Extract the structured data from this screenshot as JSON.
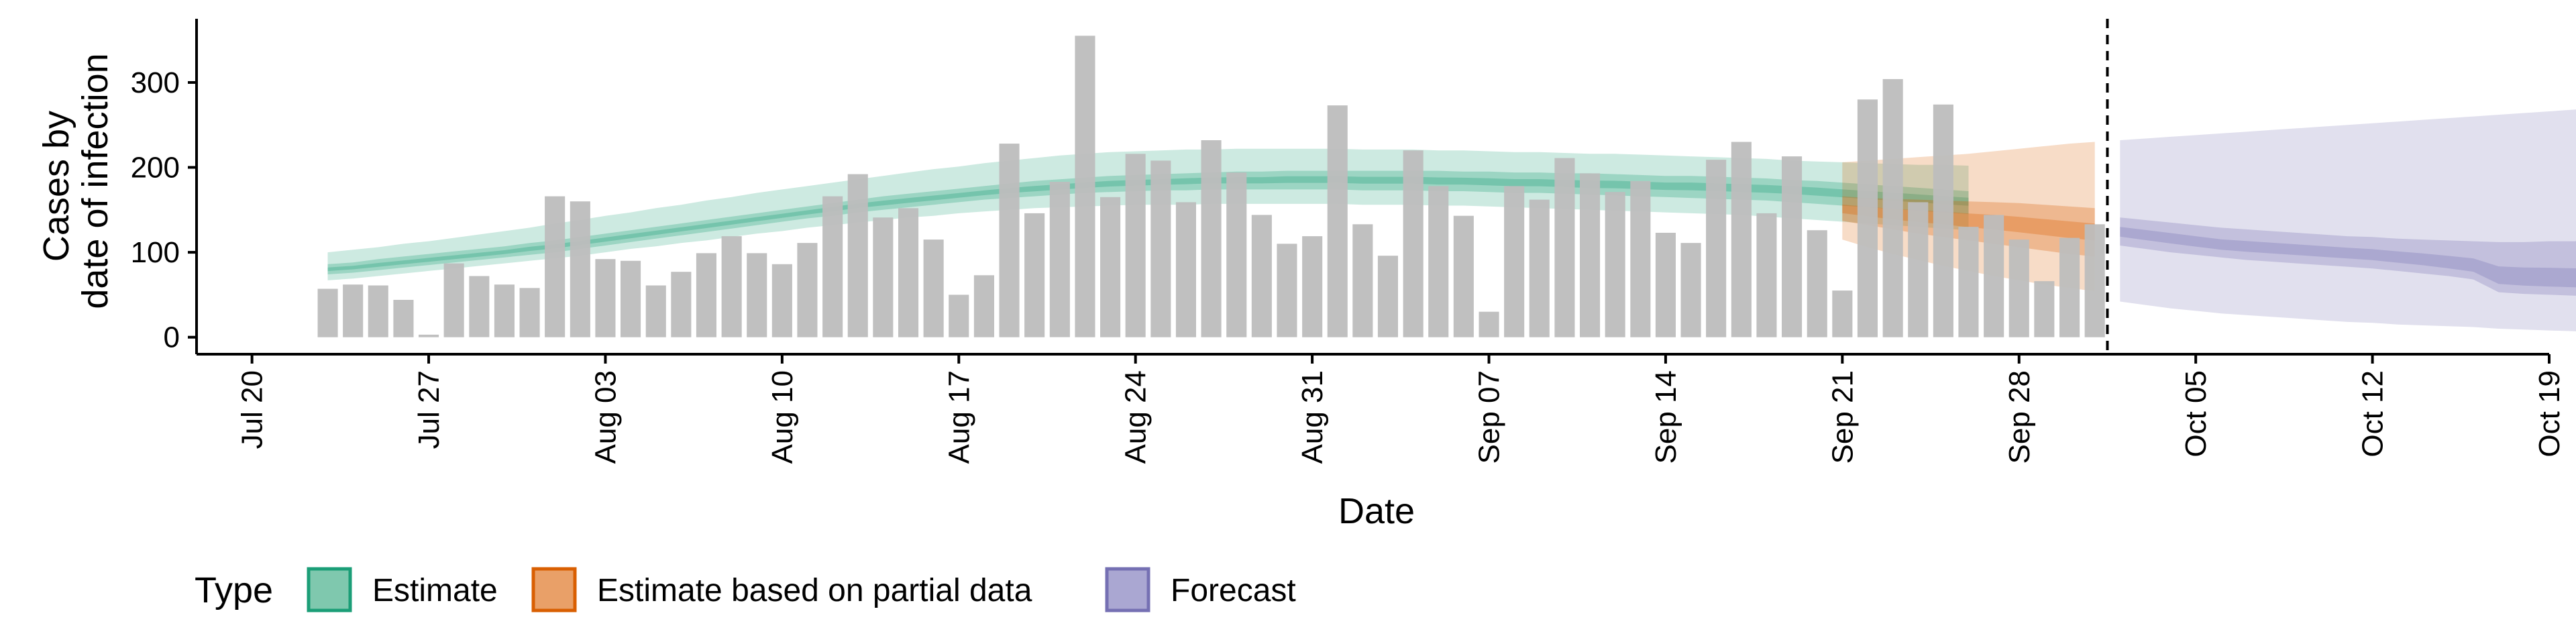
{
  "chart_data": {
    "type": "bar",
    "xlabel": "Date",
    "ylabel": [
      "Cases by",
      "date of infection"
    ],
    "yticks": [
      0,
      100,
      200,
      300
    ],
    "ylim": [
      -20,
      375
    ],
    "xlim": [
      "2020-07-19",
      "2020-10-19"
    ],
    "xticks": [
      {
        "date": "2020-07-20",
        "label": "Jul 20"
      },
      {
        "date": "2020-07-27",
        "label": "Jul 27"
      },
      {
        "date": "2020-08-03",
        "label": "Aug 03"
      },
      {
        "date": "2020-08-10",
        "label": "Aug 10"
      },
      {
        "date": "2020-08-17",
        "label": "Aug 17"
      },
      {
        "date": "2020-08-24",
        "label": "Aug 24"
      },
      {
        "date": "2020-08-31",
        "label": "Aug 31"
      },
      {
        "date": "2020-09-07",
        "label": "Sep 07"
      },
      {
        "date": "2020-09-14",
        "label": "Sep 14"
      },
      {
        "date": "2020-09-21",
        "label": "Sep 21"
      },
      {
        "date": "2020-09-28",
        "label": "Sep 28"
      },
      {
        "date": "2020-10-05",
        "label": "Oct 05"
      },
      {
        "date": "2020-10-12",
        "label": "Oct 12"
      },
      {
        "date": "2020-10-19",
        "label": "Oct 19"
      }
    ],
    "grid": false,
    "forecast_start_line": "2020-10-01",
    "legend": {
      "title": "Type",
      "position": "bottom",
      "entries": [
        {
          "label": "Estimate",
          "fill": "#7fc8ae",
          "stroke": "#1b9e77"
        },
        {
          "label": "Estimate based on partial data",
          "fill": "#e9a068",
          "stroke": "#d95f02"
        },
        {
          "label": "Forecast",
          "fill": "#aaa7d2",
          "stroke": "#7570b3"
        }
      ]
    },
    "bars": {
      "color": "#bdbdbd",
      "start_date": "2020-07-23",
      "values": [
        57,
        62,
        61,
        44,
        3,
        87,
        72,
        62,
        58,
        166,
        160,
        92,
        90,
        61,
        77,
        99,
        119,
        99,
        86,
        111,
        166,
        192,
        141,
        152,
        115,
        50,
        73,
        228,
        146,
        183,
        355,
        165,
        216,
        208,
        159,
        232,
        194,
        144,
        110,
        119,
        273,
        133,
        96,
        220,
        178,
        143,
        30,
        178,
        162,
        211,
        193,
        171,
        184,
        123,
        111,
        209,
        230,
        146,
        213,
        126,
        55,
        280,
        304,
        159,
        274,
        130,
        144,
        115,
        66,
        117,
        133
      ]
    },
    "series": [
      {
        "type": "Estimate",
        "fill": "#1b9e77",
        "start_date": "2020-07-23",
        "median": [
          80,
          82,
          85,
          88,
          91,
          94,
          97,
          100,
          104,
          107,
          111,
          115,
          119,
          123,
          127,
          131,
          135,
          139,
          143,
          147,
          151,
          155,
          158,
          161,
          164,
          167,
          170,
          173,
          175,
          177,
          179,
          181,
          182,
          183,
          184,
          185,
          185,
          185,
          186,
          186,
          186,
          185,
          185,
          185,
          184,
          184,
          183,
          182,
          182,
          181,
          180,
          180,
          179,
          178,
          178,
          177,
          176,
          175,
          174,
          172,
          170,
          168,
          166,
          164,
          162,
          160
        ],
        "inner_low": [
          74,
          76,
          79,
          82,
          85,
          88,
          91,
          94,
          97,
          100,
          104,
          108,
          112,
          116,
          120,
          124,
          128,
          132,
          136,
          140,
          143,
          147,
          150,
          153,
          156,
          159,
          162,
          164,
          166,
          168,
          170,
          171,
          172,
          173,
          173,
          174,
          174,
          174,
          174,
          174,
          174,
          173,
          173,
          173,
          172,
          172,
          171,
          170,
          170,
          169,
          168,
          167,
          166,
          165,
          164,
          163,
          162,
          161,
          159,
          157,
          155,
          153,
          151,
          149,
          147,
          145
        ],
        "inner_high": [
          86,
          88,
          92,
          95,
          98,
          101,
          104,
          107,
          111,
          114,
          118,
          122,
          126,
          130,
          134,
          138,
          142,
          146,
          150,
          154,
          158,
          162,
          166,
          169,
          172,
          175,
          178,
          181,
          184,
          186,
          188,
          190,
          191,
          192,
          193,
          194,
          195,
          195,
          196,
          196,
          196,
          196,
          196,
          196,
          196,
          195,
          195,
          194,
          194,
          193,
          193,
          192,
          191,
          190,
          190,
          189,
          188,
          187,
          185,
          184,
          182,
          180,
          178,
          176,
          174,
          172
        ],
        "outer_low": [
          67,
          69,
          72,
          75,
          78,
          81,
          84,
          87,
          90,
          93,
          96,
          100,
          104,
          107,
          111,
          114,
          118,
          122,
          125,
          129,
          132,
          135,
          138,
          141,
          143,
          146,
          148,
          150,
          152,
          153,
          154,
          155,
          156,
          156,
          156,
          157,
          157,
          157,
          157,
          157,
          157,
          156,
          156,
          156,
          155,
          155,
          154,
          153,
          152,
          151,
          150,
          149,
          148,
          147,
          146,
          145,
          144,
          142,
          140,
          138,
          136,
          134,
          132,
          130,
          128,
          126
        ],
        "outer_high": [
          100,
          103,
          106,
          110,
          113,
          117,
          121,
          125,
          129,
          134,
          138,
          143,
          147,
          152,
          156,
          161,
          165,
          170,
          174,
          178,
          182,
          186,
          190,
          194,
          198,
          201,
          205,
          208,
          211,
          214,
          216,
          218,
          219,
          220,
          221,
          221,
          222,
          222,
          222,
          222,
          222,
          221,
          221,
          221,
          220,
          220,
          219,
          218,
          218,
          217,
          216,
          216,
          215,
          214,
          213,
          212,
          211,
          210,
          208,
          207,
          206,
          205,
          204,
          203,
          203,
          202
        ]
      },
      {
        "type": "Estimate based on partial data",
        "fill": "#d95f02",
        "start_date": "2020-09-21",
        "median": [
          151,
          148,
          145,
          143,
          141,
          138,
          136,
          133,
          130,
          127,
          124
        ],
        "inner_low": [
          137,
          132,
          127,
          122,
          118,
          114,
          110,
          106,
          102,
          98,
          95
        ],
        "inner_high": [
          166,
          164,
          163,
          162,
          161,
          160,
          159,
          158,
          156,
          154,
          152
        ],
        "outer_low": [
          115,
          106,
          98,
          91,
          84,
          78,
          72,
          67,
          62,
          58,
          54
        ],
        "outer_high": [
          206,
          208,
          210,
          212,
          214,
          216,
          219,
          222,
          225,
          228,
          230
        ]
      },
      {
        "type": "Forecast",
        "fill": "#7570b3",
        "start_date": "2020-10-02",
        "median": [
          124,
          120,
          116,
          112,
          108,
          106,
          104,
          102,
          100,
          98,
          96,
          93,
          90,
          86,
          82,
          68,
          66,
          65,
          64,
          63,
          62,
          61,
          60,
          59,
          58,
          57,
          57,
          57
        ],
        "inner_low": [
          108,
          104,
          100,
          97,
          94,
          91,
          89,
          87,
          85,
          83,
          81,
          78,
          75,
          72,
          68,
          53,
          51,
          50,
          49,
          48,
          47,
          47,
          46,
          46,
          45,
          45,
          45,
          45
        ],
        "inner_high": [
          141,
          138,
          135,
          132,
          129,
          127,
          125,
          123,
          121,
          119,
          118,
          116,
          115,
          114,
          113,
          112,
          112,
          113,
          113,
          114,
          114,
          115,
          115,
          116,
          116,
          116,
          116,
          116
        ],
        "outer_low": [
          42,
          38,
          34,
          31,
          28,
          26,
          24,
          22,
          20,
          18,
          17,
          15,
          14,
          13,
          12,
          10,
          9,
          8,
          7,
          6,
          5,
          4,
          3,
          2,
          1,
          1,
          1,
          1
        ],
        "outer_high": [
          232,
          234,
          236,
          238,
          240,
          242,
          244,
          246,
          248,
          250,
          252,
          254,
          256,
          258,
          260,
          262,
          264,
          266,
          268,
          270,
          272,
          274,
          276,
          278,
          280,
          282,
          283,
          284
        ]
      }
    ]
  }
}
